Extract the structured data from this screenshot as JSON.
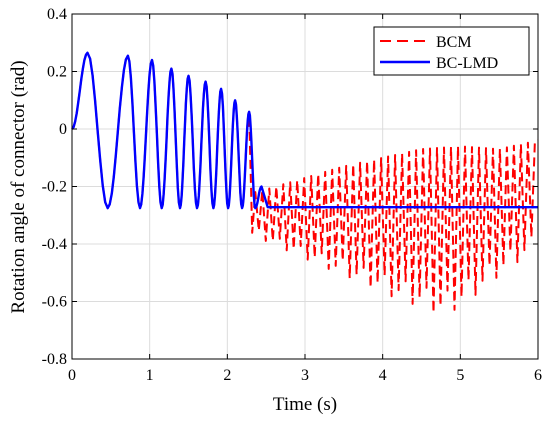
{
  "chart_data": {
    "type": "line",
    "title": "",
    "xlabel": "Time (s)",
    "ylabel": "Rotation angle of connector (rad)",
    "xlim": [
      0,
      6
    ],
    "ylim": [
      -0.8,
      0.4
    ],
    "xticks": [
      0,
      1,
      2,
      3,
      4,
      5,
      6
    ],
    "yticks": [
      0.4,
      0.2,
      0,
      -0.2,
      -0.4,
      -0.6,
      -0.8
    ],
    "xtick_labels": [
      "0",
      "1",
      "2",
      "3",
      "4",
      "5",
      "6"
    ],
    "ytick_labels": [
      "0.4",
      "0.2",
      "0",
      "-0.2",
      "-0.4",
      "-0.6",
      "-0.8"
    ],
    "grid": true,
    "legend_position": "top-right",
    "series": [
      {
        "name": "BCM",
        "color": "#ff0000",
        "style": "dashed",
        "peaks_upto_2_3s": [
          {
            "t": 0.2,
            "v": 0.265
          },
          {
            "t": 0.72,
            "v": 0.255
          },
          {
            "t": 1.03,
            "v": 0.24
          },
          {
            "t": 1.28,
            "v": 0.21
          },
          {
            "t": 1.5,
            "v": 0.185
          },
          {
            "t": 1.72,
            "v": 0.165
          },
          {
            "t": 1.92,
            "v": 0.14
          },
          {
            "t": 2.1,
            "v": 0.1
          },
          {
            "t": 2.28,
            "v": 0.06
          }
        ],
        "upper_envelope": [
          {
            "t": 1.6,
            "v": -0.27
          },
          {
            "t": 2.5,
            "v": -0.21
          },
          {
            "t": 3.0,
            "v": -0.17
          },
          {
            "t": 3.5,
            "v": -0.13
          },
          {
            "t": 4.0,
            "v": -0.1
          },
          {
            "t": 4.5,
            "v": -0.07
          },
          {
            "t": 5.0,
            "v": -0.06
          },
          {
            "t": 5.5,
            "v": -0.07
          },
          {
            "t": 6.0,
            "v": -0.04
          }
        ],
        "lower_envelope": [
          {
            "t": 1.6,
            "v": -0.28
          },
          {
            "t": 2.0,
            "v": -0.31
          },
          {
            "t": 2.5,
            "v": -0.39
          },
          {
            "t": 3.0,
            "v": -0.45
          },
          {
            "t": 3.5,
            "v": -0.51
          },
          {
            "t": 4.0,
            "v": -0.57
          },
          {
            "t": 4.5,
            "v": -0.62
          },
          {
            "t": 4.75,
            "v": -0.65
          },
          {
            "t": 5.0,
            "v": -0.62
          },
          {
            "t": 5.5,
            "v": -0.51
          },
          {
            "t": 6.0,
            "v": -0.41
          }
        ]
      },
      {
        "name": "BC-LMD",
        "color": "#0000ff",
        "style": "solid",
        "peaks": [
          {
            "t": 0.2,
            "v": 0.265
          },
          {
            "t": 0.72,
            "v": 0.255
          },
          {
            "t": 1.03,
            "v": 0.24
          },
          {
            "t": 1.28,
            "v": 0.21
          },
          {
            "t": 1.5,
            "v": 0.185
          },
          {
            "t": 1.72,
            "v": 0.165
          },
          {
            "t": 1.92,
            "v": 0.14
          },
          {
            "t": 2.1,
            "v": 0.1
          },
          {
            "t": 2.28,
            "v": 0.06
          },
          {
            "t": 2.44,
            "v": -0.2
          }
        ],
        "trough_value": -0.275,
        "steady_value": -0.272
      }
    ]
  }
}
